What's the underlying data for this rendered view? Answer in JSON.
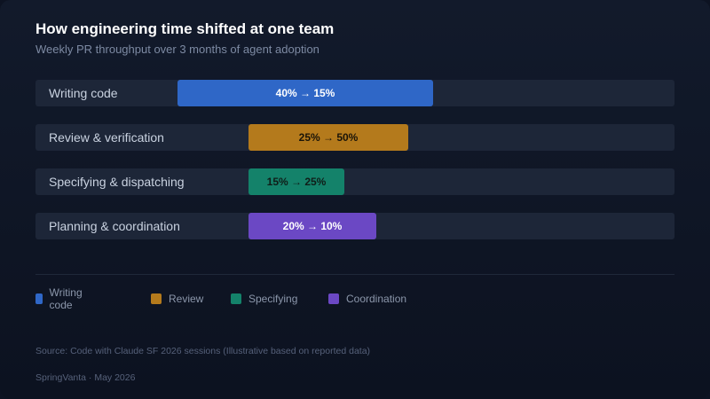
{
  "title": "How engineering time shifted at one team",
  "subtitle": "Weekly PR throughput over 3 months of agent adoption",
  "chart_data": {
    "type": "bar",
    "categories": [
      "Writing code",
      "Review & verification",
      "Specifying & dispatching",
      "Planning & coordination"
    ],
    "series": [
      {
        "values": [
          40,
          25,
          15,
          20
        ]
      },
      {
        "values": [
          15,
          50,
          25,
          10
        ]
      }
    ],
    "bar_labels": [
      "40% → 15%",
      "25% → 50%",
      "15% → 25%",
      "20% → 10%"
    ],
    "colors": [
      "#2f67c7",
      "#b47a1c",
      "#14826a",
      "#6b48c4"
    ],
    "label_colors": [
      "#ffffff",
      "#1a1408",
      "#0f1d18",
      "#ffffff"
    ],
    "legend": [
      {
        "label": "Writing code",
        "color": "#2f67c7"
      },
      {
        "label": "Review",
        "color": "#b47a1c"
      },
      {
        "label": "Specifying",
        "color": "#14826a"
      },
      {
        "label": "Coordination",
        "color": "#6b48c4"
      }
    ],
    "legend_placement": "bottom-left",
    "xlim": [
      0,
      100
    ],
    "grid": false
  },
  "footer": {
    "source": "Source: Code with Claude SF 2026 sessions (Illustrative based on reported data)",
    "brand": "SpringVanta · May 2026"
  }
}
